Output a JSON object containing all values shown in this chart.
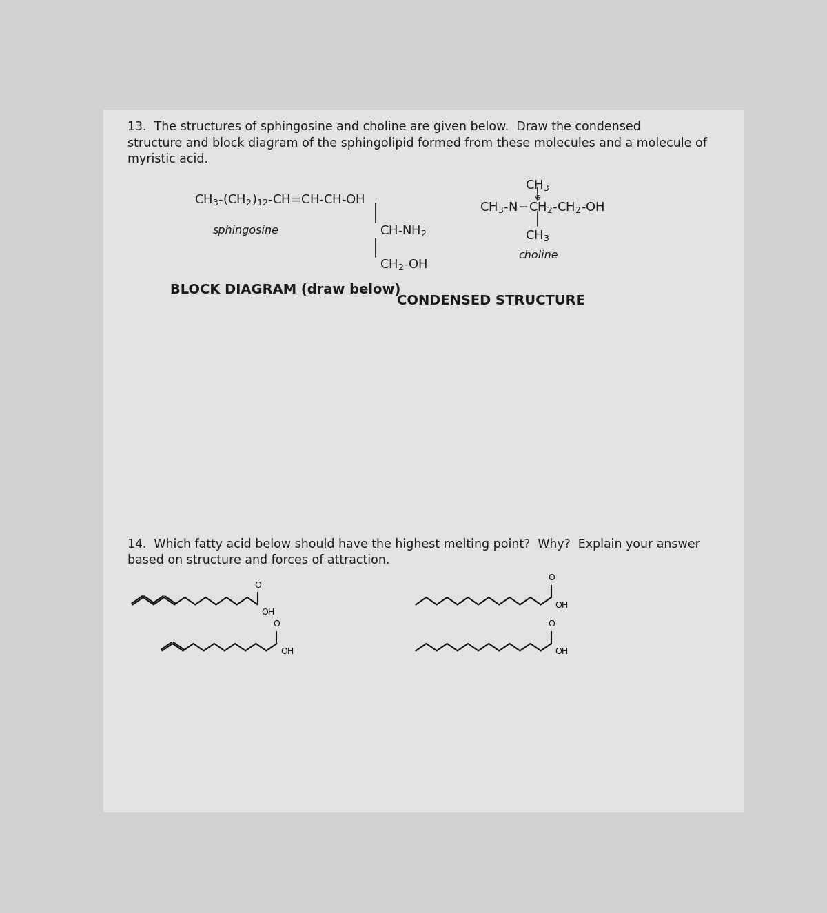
{
  "bg_color_top": "#c8c8c8",
  "bg_color": "#d0d0d0",
  "paper_color": "#e6e6e6",
  "text_color": "#1a1a1a",
  "line_color": "#222222",
  "q13_line1": "13.  The structures of sphingosine and choline are given below.  Draw the condensed",
  "q13_line2": "structure and block diagram of the sphingolipid formed from these molecules and a molecule of",
  "q13_line3": "myristic acid.",
  "sphingosine_main": "CH₃-(CH₂)₁₂-CH=CH-CH-OH",
  "sphingosine_branch1": "CH-NH₂",
  "sphingosine_branch2": "CH₂-OH",
  "sphingosine_label": "sphingosine",
  "choline_top": "CH₃",
  "choline_main": "CH₃-N—CH₂-CH₂-OH",
  "choline_bot": "CH₃",
  "choline_label": "choline",
  "block_label": "BLOCK DIAGRAM (draw below)",
  "condensed_label": "CONDENSED STRUCTURE",
  "q14_line1": "14.  Which fatty acid below should have the highest melting point?  Why?  Explain your answer",
  "q14_line2_normal": "based on structure and forces of attraction.",
  "fs_body": 12.5,
  "fs_chem": 12,
  "fs_label_bold": 13
}
